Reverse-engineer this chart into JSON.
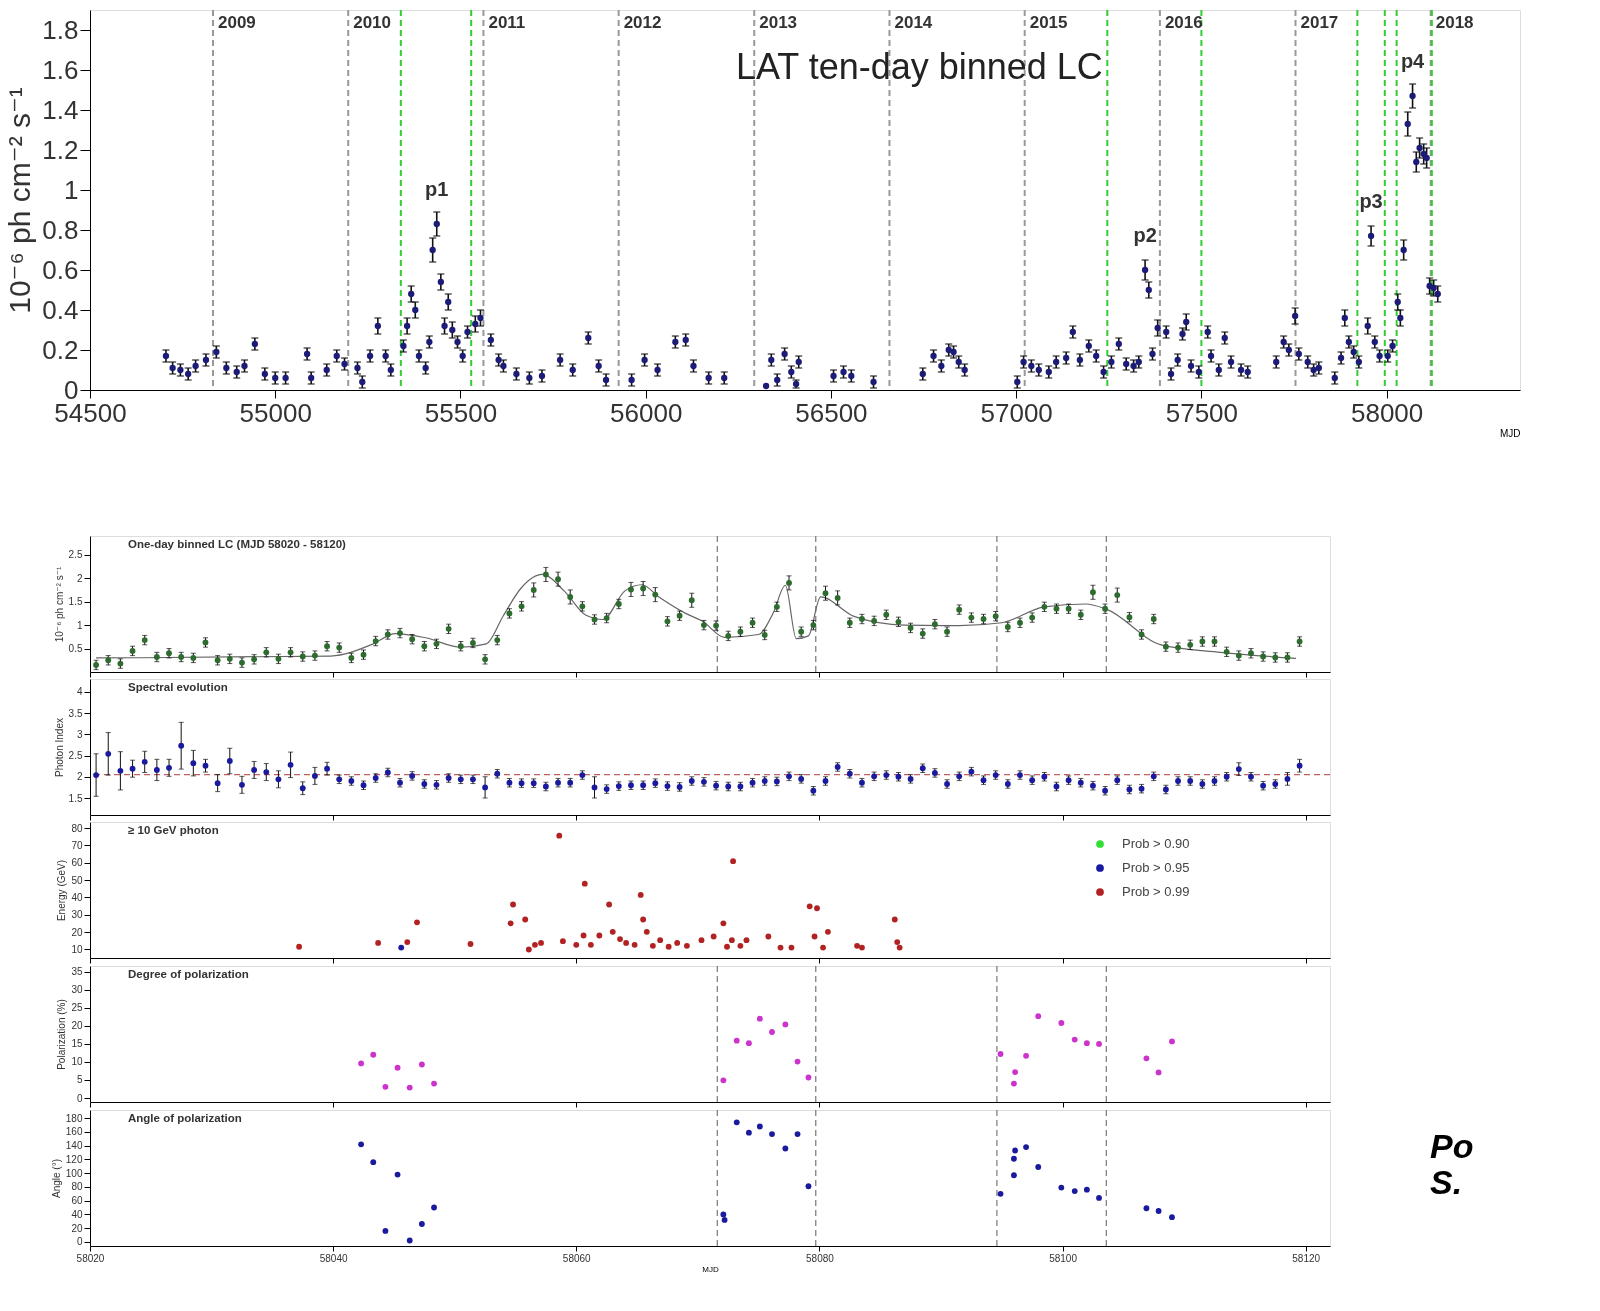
{
  "chart_data": [
    {
      "type": "scatter",
      "title": "LAT ten-day binned LC",
      "xlabel": "MJD",
      "ylabel": "10⁻⁶ ph cm⁻² s⁻¹",
      "xlim": [
        54500,
        58360
      ],
      "xticks": [
        54500,
        55000,
        55500,
        56000,
        56500,
        57000,
        57500,
        58000
      ],
      "ylim": [
        0,
        1.9
      ],
      "yticks": [
        0,
        0.2,
        0.4,
        0.6,
        0.8,
        1,
        1.2,
        1.4,
        1.6,
        1.8
      ],
      "marker": "circle",
      "series": [
        {
          "color": "#1c1c78",
          "x": [
            54705,
            54723,
            54744,
            54765,
            54785,
            54813,
            54841,
            54868,
            54896,
            54917,
            54945,
            54972,
            55000,
            55028,
            55086,
            55097,
            55139,
            55166,
            55187,
            55222,
            55235,
            55256,
            55277,
            55298,
            55312,
            55346,
            55356,
            55367,
            55378,
            55388,
            55406,
            55416,
            55425,
            55436,
            55447,
            55457,
            55467,
            55478,
            55492,
            55506,
            55519,
            55540,
            55554,
            55582,
            55603,
            55616,
            55651,
            55686,
            55720,
            55769,
            55803,
            55845,
            55873,
            55893,
            55962,
            55997,
            56032,
            56080,
            56108,
            56129,
            56170,
            56212,
            56325,
            56339,
            56355,
            56375,
            56393,
            56406,
            56413,
            56507,
            56534,
            56555,
            56615,
            56748,
            56777,
            56798,
            56818,
            56831,
            56845,
            56861,
            57003,
            57020,
            57041,
            57061,
            57088,
            57108,
            57135,
            57153,
            57172,
            57196,
            57216,
            57236,
            57257,
            57277,
            57297,
            57317,
            57331,
            57348,
            57358,
            57368,
            57382,
            57405,
            57418,
            57436,
            57449,
            57459,
            57472,
            57493,
            57517,
            57526,
            57547,
            57563,
            57580,
            57607,
            57625,
            57702,
            57722,
            57736,
            57753,
            57763,
            57787,
            57803,
            57817,
            57860,
            57877,
            57887,
            57898,
            57911,
            57925,
            57949,
            57958,
            57968,
            57981,
            58003,
            58016,
            58030,
            58037,
            58046,
            58057,
            58070,
            58080,
            58089,
            58100,
            58108,
            58116,
            58127,
            58138
          ],
          "values": [
            0.17,
            0.11,
            0.1,
            0.08,
            0.12,
            0.15,
            0.19,
            0.11,
            0.09,
            0.12,
            0.23,
            0.08,
            0.06,
            0.06,
            0.18,
            0.06,
            0.1,
            0.17,
            0.13,
            0.11,
            0.04,
            0.17,
            0.32,
            0.17,
            0.1,
            0.22,
            0.32,
            0.48,
            0.4,
            0.17,
            0.11,
            0.24,
            0.7,
            0.83,
            0.54,
            0.32,
            0.44,
            0.3,
            0.24,
            0.17,
            0.29,
            0.33,
            0.36,
            0.25,
            0.15,
            0.12,
            0.08,
            0.06,
            0.07,
            0.15,
            0.1,
            0.26,
            0.12,
            0.05,
            0.05,
            0.15,
            0.1,
            0.24,
            0.25,
            0.12,
            0.06,
            0.06,
            0.02,
            0.15,
            0.05,
            0.18,
            0.09,
            0.03,
            0.14,
            0.07,
            0.09,
            0.07,
            0.04,
            0.08,
            0.17,
            0.12,
            0.2,
            0.19,
            0.14,
            0.1,
            0.04,
            0.14,
            0.12,
            0.1,
            0.09,
            0.14,
            0.16,
            0.29,
            0.15,
            0.22,
            0.17,
            0.09,
            0.14,
            0.23,
            0.13,
            0.12,
            0.14,
            0.6,
            0.5,
            0.18,
            0.31,
            0.29,
            0.08,
            0.15,
            0.28,
            0.34,
            0.12,
            0.09,
            0.29,
            0.17,
            0.1,
            0.26,
            0.14,
            0.1,
            0.09,
            0.14,
            0.24,
            0.2,
            0.37,
            0.18,
            0.14,
            0.1,
            0.11,
            0.06,
            0.16,
            0.36,
            0.24,
            0.19,
            0.14,
            0.32,
            0.77,
            0.24,
            0.17,
            0.17,
            0.22,
            0.44,
            0.36,
            0.7,
            1.33,
            1.47,
            1.14,
            1.21,
            1.18,
            1.16,
            0.52,
            0.51,
            0.48
          ],
          "errors": [
            0.03,
            0.03,
            0.03,
            0.03,
            0.03,
            0.03,
            0.03,
            0.03,
            0.03,
            0.03,
            0.03,
            0.03,
            0.03,
            0.03,
            0.03,
            0.03,
            0.03,
            0.03,
            0.03,
            0.03,
            0.03,
            0.03,
            0.04,
            0.03,
            0.03,
            0.03,
            0.04,
            0.04,
            0.04,
            0.03,
            0.03,
            0.03,
            0.06,
            0.06,
            0.04,
            0.04,
            0.04,
            0.04,
            0.03,
            0.03,
            0.03,
            0.04,
            0.04,
            0.03,
            0.03,
            0.03,
            0.03,
            0.03,
            0.03,
            0.03,
            0.03,
            0.03,
            0.03,
            0.03,
            0.03,
            0.03,
            0.03,
            0.03,
            0.03,
            0.03,
            0.03,
            0.03,
            null,
            0.03,
            0.03,
            0.03,
            0.03,
            0.02,
            0.03,
            0.03,
            0.03,
            0.03,
            0.03,
            0.03,
            0.03,
            0.03,
            0.03,
            0.03,
            0.03,
            0.03,
            0.03,
            0.03,
            0.03,
            0.03,
            0.03,
            0.03,
            0.03,
            0.03,
            0.03,
            0.03,
            0.03,
            0.03,
            0.03,
            0.03,
            0.03,
            0.03,
            0.03,
            0.05,
            0.04,
            0.03,
            0.04,
            0.03,
            0.03,
            0.03,
            0.03,
            0.04,
            0.03,
            0.03,
            0.03,
            0.03,
            0.03,
            0.03,
            0.03,
            0.03,
            0.03,
            0.03,
            0.03,
            0.03,
            0.04,
            0.03,
            0.03,
            0.03,
            0.03,
            0.03,
            0.03,
            0.04,
            0.03,
            0.03,
            0.03,
            0.04,
            0.05,
            0.03,
            0.03,
            0.03,
            0.03,
            0.04,
            0.04,
            0.05,
            0.06,
            0.06,
            0.05,
            0.05,
            0.05,
            0.05,
            0.04,
            0.04,
            0.04
          ]
        }
      ],
      "ref_lines": [
        {
          "axis": "x",
          "value": 54832,
          "color": "#999999",
          "line_style": "dashed"
        },
        {
          "axis": "x",
          "value": 55197,
          "color": "#999999",
          "line_style": "dashed"
        },
        {
          "axis": "x",
          "value": 55562,
          "color": "#999999",
          "line_style": "dashed"
        },
        {
          "axis": "x",
          "value": 55927,
          "color": "#999999",
          "line_style": "dashed"
        },
        {
          "axis": "x",
          "value": 56293,
          "color": "#999999",
          "line_style": "dashed"
        },
        {
          "axis": "x",
          "value": 56658,
          "color": "#999999",
          "line_style": "dashed"
        },
        {
          "axis": "x",
          "value": 57023,
          "color": "#999999",
          "line_style": "dashed"
        },
        {
          "axis": "x",
          "value": 57388,
          "color": "#999999",
          "line_style": "dashed"
        },
        {
          "axis": "x",
          "value": 57754,
          "color": "#999999",
          "line_style": "dashed"
        },
        {
          "axis": "x",
          "value": 58119,
          "color": "#999999",
          "line_style": "dashed"
        },
        {
          "axis": "x",
          "value": 55339,
          "color": "#33cc33",
          "line_style": "dashed"
        },
        {
          "axis": "x",
          "value": 55529,
          "color": "#33cc33",
          "line_style": "dashed"
        },
        {
          "axis": "x",
          "value": 57246,
          "color": "#33cc33",
          "line_style": "dashed"
        },
        {
          "axis": "x",
          "value": 57500,
          "color": "#33cc33",
          "line_style": "dashed"
        },
        {
          "axis": "x",
          "value": 57921,
          "color": "#33cc33",
          "line_style": "dashed"
        },
        {
          "axis": "x",
          "value": 57995,
          "color": "#33cc33",
          "line_style": "dashed"
        },
        {
          "axis": "x",
          "value": 58027,
          "color": "#33cc33",
          "line_style": "dashed"
        },
        {
          "axis": "x",
          "value": 58122,
          "color": "#33cc33",
          "line_style": "dashed"
        }
      ],
      "annotations": [
        {
          "text": "2009",
          "x": 54832,
          "y": 1.9
        },
        {
          "text": "2010",
          "x": 55197,
          "y": 1.9
        },
        {
          "text": "2011",
          "x": 55562,
          "y": 1.9
        },
        {
          "text": "2012",
          "x": 55927,
          "y": 1.9
        },
        {
          "text": "2013",
          "x": 56293,
          "y": 1.9
        },
        {
          "text": "2014",
          "x": 56658,
          "y": 1.9
        },
        {
          "text": "2015",
          "x": 57023,
          "y": 1.9
        },
        {
          "text": "2016",
          "x": 57388,
          "y": 1.9
        },
        {
          "text": "2017",
          "x": 57754,
          "y": 1.9
        },
        {
          "text": "2018",
          "x": 58119,
          "y": 1.9
        },
        {
          "text": "p1",
          "x": 55436,
          "y": 0.83
        },
        {
          "text": "p2",
          "x": 57348,
          "y": 0.6
        },
        {
          "text": "p3",
          "x": 57958,
          "y": 0.77
        },
        {
          "text": "p4",
          "x": 58070,
          "y": 1.47
        }
      ]
    },
    {
      "type": "scatter",
      "title": "One-day binned LC (MJD 58020 - 58120)",
      "ylabel": "10⁻⁶ ph cm⁻² s⁻¹",
      "xlim": [
        58020,
        58122
      ],
      "xticks": [
        58020,
        58040,
        58060,
        58080,
        58100,
        58120
      ],
      "ylim": [
        0,
        2.9
      ],
      "yticks": [
        0.5,
        1,
        1.5,
        2,
        2.5
      ],
      "tick_labels": "y",
      "marker": "circle",
      "x": [
        58020.5,
        58021.5,
        58022.5,
        58023.5,
        58024.5,
        58025.5,
        58026.5,
        58027.5,
        58028.5,
        58029.5,
        58030.5,
        58031.5,
        58032.5,
        58033.5,
        58034.5,
        58035.5,
        58036.5,
        58037.5,
        58038.5,
        58039.5,
        58040.5,
        58041.5,
        58042.5,
        58043.5,
        58044.5,
        58045.5,
        58046.5,
        58047.5,
        58048.5,
        58049.5,
        58050.5,
        58051.5,
        58052.5,
        58053.5,
        58054.5,
        58055.5,
        58056.5,
        58057.5,
        58058.5,
        58059.5,
        58060.5,
        58061.5,
        58062.5,
        58063.5,
        58064.5,
        58065.5,
        58066.5,
        58067.5,
        58068.5,
        58069.5,
        58070.5,
        58071.5,
        58072.5,
        58073.5,
        58074.5,
        58075.5,
        58076.5,
        58077.5,
        58078.5,
        58079.5,
        58080.5,
        58081.5,
        58082.5,
        58083.5,
        58084.5,
        58085.5,
        58086.5,
        58087.5,
        58088.5,
        58089.5,
        58090.5,
        58091.5,
        58092.5,
        58093.5,
        58094.5,
        58095.5,
        58096.5,
        58097.5,
        58098.5,
        58099.5,
        58100.5,
        58101.5,
        58102.5,
        58103.5,
        58104.5,
        58105.5,
        58106.5,
        58107.5,
        58108.5,
        58109.5,
        58110.5,
        58111.5,
        58112.5,
        58113.5,
        58114.5,
        58115.5,
        58116.5,
        58117.5,
        58118.5,
        58119.5
      ],
      "series": [
        {
          "type": "line",
          "marker": "none",
          "color": "#666666",
          "x": [
            58020.5,
            58039.8,
            58043.3,
            58045.1,
            58047.6,
            58050.5,
            58052.6,
            58054,
            58055.4,
            58057.2,
            58059,
            58060.8,
            58062.2,
            58064,
            58065.4,
            58066.8,
            58069,
            58070.4,
            58072.2,
            58075,
            58076.2,
            58077.2,
            58078.1,
            58079.1,
            58080.1,
            58082.9,
            58087,
            58091.5,
            58095,
            58098.5,
            58101.9,
            58103.6,
            58108.1,
            58113,
            58119.2
          ],
          "values": [
            0.3,
            0.34,
            0.6,
            0.82,
            0.73,
            0.53,
            0.6,
            1.2,
            1.77,
            2.08,
            1.73,
            1.21,
            1.12,
            1.73,
            1.86,
            1.6,
            1.25,
            1.08,
            0.74,
            0.8,
            1.26,
            1.85,
            0.71,
            0.77,
            1.6,
            1.18,
            1.0,
            0.99,
            1.05,
            1.39,
            1.45,
            1.34,
            0.58,
            0.42,
            0.29
          ]
        },
        {
          "color": "#2e6b2e",
          "values": [
            0.15,
            0.25,
            0.18,
            0.45,
            0.68,
            0.32,
            0.4,
            0.32,
            0.3,
            0.63,
            0.25,
            0.28,
            0.2,
            0.27,
            0.42,
            0.28,
            0.42,
            0.33,
            0.35,
            0.55,
            0.52,
            0.3,
            0.37,
            0.66,
            0.8,
            0.83,
            0.7,
            0.55,
            0.6,
            0.92,
            0.55,
            0.62,
            0.27,
            0.68,
            1.25,
            1.4,
            1.75,
            2.08,
            1.98,
            1.6,
            1.4,
            1.12,
            1.15,
            1.45,
            1.76,
            1.78,
            1.65,
            1.08,
            1.2,
            1.53,
            1.0,
            0.99,
            0.77,
            0.86,
            1.05,
            0.79,
            1.39,
            1.9,
            0.86,
            1.0,
            1.68,
            1.58,
            1.05,
            1.13,
            1.09,
            1.22,
            1.07,
            0.94,
            0.82,
            1.02,
            0.86,
            1.33,
            1.16,
            1.13,
            1.19,
            0.96,
            1.05,
            1.16,
            1.39,
            1.35,
            1.35,
            1.22,
            1.7,
            1.35,
            1.64,
            1.17,
            0.8,
            1.13,
            0.54,
            0.52,
            0.58,
            0.65,
            0.65,
            0.43,
            0.35,
            0.4,
            0.33,
            0.31,
            0.31,
            0.65
          ],
          "errors": [
            0.1,
            0.1,
            0.1,
            0.1,
            0.1,
            0.1,
            0.1,
            0.1,
            0.1,
            0.1,
            0.1,
            0.1,
            0.1,
            0.1,
            0.1,
            0.1,
            0.1,
            0.1,
            0.1,
            0.1,
            0.1,
            0.1,
            0.1,
            0.1,
            0.1,
            0.1,
            0.1,
            0.1,
            0.1,
            0.1,
            0.1,
            0.1,
            0.1,
            0.1,
            0.1,
            0.1,
            0.15,
            0.15,
            0.15,
            0.15,
            0.1,
            0.1,
            0.1,
            0.1,
            0.15,
            0.15,
            0.15,
            0.1,
            0.1,
            0.15,
            0.1,
            0.1,
            0.1,
            0.1,
            0.1,
            0.1,
            0.1,
            0.15,
            0.1,
            0.1,
            0.15,
            0.15,
            0.1,
            0.1,
            0.1,
            0.1,
            0.1,
            0.1,
            0.1,
            0.1,
            0.1,
            0.1,
            0.1,
            0.1,
            0.1,
            0.1,
            0.1,
            0.1,
            0.1,
            0.1,
            0.1,
            0.1,
            0.15,
            0.1,
            0.15,
            0.1,
            0.1,
            0.1,
            0.1,
            0.1,
            0.1,
            0.1,
            0.1,
            0.1,
            0.1,
            0.1,
            0.1,
            0.1,
            0.1,
            0.1
          ]
        }
      ],
      "ref_lines": [
        {
          "axis": "x",
          "value": 58071.6,
          "color": "#777777",
          "line_style": "dashed"
        },
        {
          "axis": "x",
          "value": 58079.7,
          "color": "#777777",
          "line_style": "dashed"
        },
        {
          "axis": "x",
          "value": 58094.6,
          "color": "#777777",
          "line_style": "dashed"
        },
        {
          "axis": "x",
          "value": 58103.6,
          "color": "#777777",
          "line_style": "dashed"
        }
      ]
    },
    {
      "type": "scatter",
      "title": "Spectral evolution",
      "ylabel": "Photon Index",
      "xlim": [
        58020,
        58122
      ],
      "xticks": [
        58020,
        58040,
        58060,
        58080,
        58100,
        58120
      ],
      "ylim": [
        1.1,
        4.3
      ],
      "yticks": [
        1.5,
        2,
        2.5,
        3,
        3.5,
        4
      ],
      "tick_labels": "y",
      "marker": "circle",
      "x": [
        58020.5,
        58021.5,
        58022.5,
        58023.5,
        58024.5,
        58025.5,
        58026.5,
        58027.5,
        58028.5,
        58029.5,
        58030.5,
        58031.5,
        58032.5,
        58033.5,
        58034.5,
        58035.5,
        58036.5,
        58037.5,
        58038.5,
        58039.5,
        58040.5,
        58041.5,
        58042.5,
        58043.5,
        58044.5,
        58045.5,
        58046.5,
        58047.5,
        58048.5,
        58049.5,
        58050.5,
        58051.5,
        58052.5,
        58053.5,
        58054.5,
        58055.5,
        58056.5,
        58057.5,
        58058.5,
        58059.5,
        58060.5,
        58061.5,
        58062.5,
        58063.5,
        58064.5,
        58065.5,
        58066.5,
        58067.5,
        58068.5,
        58069.5,
        58070.5,
        58071.5,
        58072.5,
        58073.5,
        58074.5,
        58075.5,
        58076.5,
        58077.5,
        58078.5,
        58079.5,
        58080.5,
        58081.5,
        58082.5,
        58083.5,
        58084.5,
        58085.5,
        58086.5,
        58087.5,
        58088.5,
        58089.5,
        58090.5,
        58091.5,
        58092.5,
        58093.5,
        58094.5,
        58095.5,
        58096.5,
        58097.5,
        58098.5,
        58099.5,
        58100.5,
        58101.5,
        58102.5,
        58103.5,
        58104.5,
        58105.5,
        58106.5,
        58107.5,
        58108.5,
        58109.5,
        58110.5,
        58111.5,
        58112.5,
        58113.5,
        58114.5,
        58115.5,
        58116.5,
        58117.5,
        58118.5,
        58119.5
      ],
      "series": [
        {
          "color": "#1a1a9e",
          "values": [
            2.04,
            2.54,
            2.14,
            2.19,
            2.35,
            2.16,
            2.21,
            2.73,
            2.32,
            2.26,
            1.85,
            2.37,
            1.81,
            2.16,
            2.11,
            1.94,
            2.28,
            1.73,
            2.02,
            2.19,
            1.94,
            1.9,
            1.8,
            1.97,
            2.1,
            1.86,
            2.02,
            1.83,
            1.81,
            1.97,
            1.94,
            1.94,
            1.75,
            2.07,
            1.86,
            1.85,
            1.85,
            1.77,
            1.86,
            1.86,
            2.04,
            1.75,
            1.71,
            1.78,
            1.8,
            1.8,
            1.85,
            1.78,
            1.76,
            1.9,
            1.88,
            1.79,
            1.77,
            1.77,
            1.86,
            1.9,
            1.89,
            2.01,
            1.95,
            1.67,
            1.9,
            2.23,
            2.07,
            1.86,
            2.01,
            2.04,
            2.0,
            1.95,
            2.2,
            2.09,
            1.83,
            2.01,
            2.12,
            1.92,
            2.04,
            1.83,
            2.04,
            1.92,
            2.0,
            1.77,
            1.92,
            1.86,
            1.79,
            1.67,
            1.92,
            1.7,
            1.72,
            2.01,
            1.7,
            1.9,
            1.9,
            1.83,
            1.9,
            2.0,
            2.18,
            2.0,
            1.79,
            1.83,
            1.95,
            2.26
          ],
          "errors": [
            0.5,
            0.5,
            0.45,
            0.2,
            0.25,
            0.25,
            0.2,
            0.55,
            0.3,
            0.15,
            0.2,
            0.3,
            0.2,
            0.2,
            0.2,
            0.2,
            0.3,
            0.15,
            0.2,
            0.15,
            0.1,
            0.1,
            0.1,
            0.1,
            0.1,
            0.1,
            0.1,
            0.1,
            0.1,
            0.1,
            0.1,
            0.1,
            0.25,
            0.1,
            0.1,
            0.1,
            0.1,
            0.1,
            0.1,
            0.1,
            0.1,
            0.25,
            0.1,
            0.1,
            0.1,
            0.1,
            0.1,
            0.1,
            0.1,
            0.1,
            0.1,
            0.1,
            0.1,
            0.1,
            0.1,
            0.1,
            0.1,
            0.1,
            0.1,
            0.1,
            0.1,
            0.1,
            0.1,
            0.1,
            0.1,
            0.1,
            0.1,
            0.1,
            0.1,
            0.1,
            0.1,
            0.1,
            0.1,
            0.1,
            0.1,
            0.1,
            0.1,
            0.1,
            0.1,
            0.1,
            0.1,
            0.1,
            0.1,
            0.1,
            0.1,
            0.1,
            0.1,
            0.1,
            0.1,
            0.1,
            0.1,
            0.1,
            0.1,
            0.1,
            0.15,
            0.1,
            0.1,
            0.1,
            0.15,
            0.15
          ]
        }
      ],
      "ref_lines": [
        {
          "axis": "y",
          "value": 2.05,
          "color": "#c06060",
          "line_style": "dashed"
        }
      ]
    },
    {
      "type": "scatter",
      "title": "≥ 10 GeV photon",
      "ylabel": "Energy (GeV)",
      "xlim": [
        58020,
        58122
      ],
      "xticks": [
        58020,
        58040,
        58060,
        58080,
        58100,
        58120
      ],
      "ylim": [
        5,
        83.5
      ],
      "yticks": [
        10,
        20,
        30,
        40,
        50,
        60,
        70,
        80
      ],
      "tick_labels": "y",
      "marker": "circle",
      "legend": "top right",
      "series": [
        {
          "name": "Prob > 0.90",
          "color": "#33dd33"
        },
        {
          "name": "Prob > 0.95",
          "color": "#1a1aa0",
          "x": [
            58045.6
          ],
          "values": [
            11
          ]
        },
        {
          "name": "Prob > 0.99",
          "color": "#b22222",
          "x": [
            58037.2,
            58043.7,
            58046.1,
            58046.9,
            58051.3,
            58054.6,
            58054.8,
            58055.8,
            58056.1,
            58056.6,
            58057.1,
            58058.6,
            58058.9,
            58060,
            58060.6,
            58060.7,
            58061.2,
            58061.9,
            58062.7,
            58063,
            58063.6,
            58064.1,
            58064.8,
            58065.3,
            58065.5,
            58065.8,
            58066.3,
            58066.9,
            58067.6,
            58068.3,
            58069.1,
            58070.3,
            58071.3,
            58072.1,
            58072.4,
            58072.9,
            58072.8,
            58073.5,
            58074,
            58075.8,
            58076.8,
            58077.7,
            58079.2,
            58079.8,
            58079.6,
            58080.3,
            58080.7,
            58083.1,
            58083.5,
            58086.2,
            58086.4,
            58086.6
          ],
          "values": [
            11.5,
            13.7,
            14.2,
            25.6,
            13.1,
            25,
            35.9,
            27.2,
            9.9,
            12.6,
            13.7,
            75.6,
            14.7,
            12.6,
            18,
            47.9,
            12.6,
            18,
            35.9,
            20.1,
            15.9,
            13.7,
            12.6,
            41.4,
            27.2,
            20.1,
            12,
            15.3,
            11.5,
            13.7,
            12,
            15.3,
            17.4,
            25,
            11.5,
            60.9,
            15.3,
            12,
            15.3,
            17.4,
            11,
            11,
            34.8,
            33.7,
            17.4,
            11,
            20.1,
            12,
            11,
            27.2,
            14.2,
            11
          ]
        }
      ]
    },
    {
      "type": "scatter",
      "title": "Degree of polarization",
      "ylabel": "Polarization (%)",
      "xlim": [
        58020,
        58122
      ],
      "xticks": [
        58020,
        58040,
        58060,
        58080,
        58100,
        58120
      ],
      "ylim": [
        -1.1,
        36.6
      ],
      "yticks": [
        0,
        5,
        10,
        15,
        20,
        25,
        30,
        35
      ],
      "tick_labels": "y",
      "marker": "circle",
      "series": [
        {
          "color": "#cc33cc",
          "x": [
            58042.3,
            58043.3,
            58044.3,
            58045.3,
            58046.3,
            58047.3,
            58048.3,
            58072.1,
            58073.2,
            58074.2,
            58075.1,
            58076.1,
            58077.2,
            58078.2,
            58079.1,
            58094.9,
            58096,
            58096.1,
            58097,
            58098,
            58099.9,
            58101,
            58102,
            58103,
            58106.9,
            58107.9,
            58109
          ],
          "values": [
            9.6,
            12.0,
            3.1,
            8.4,
            2.9,
            9.3,
            4.0,
            4.9,
            15.9,
            15.2,
            22.0,
            18.3,
            20.4,
            10.1,
            5.7,
            12.2,
            4.0,
            7.2,
            11.7,
            22.7,
            20.8,
            16.2,
            15.2,
            15.0,
            11.0,
            7.1,
            15.7
          ]
        }
      ],
      "ref_lines": [
        {
          "axis": "x",
          "value": 58071.6,
          "color": "#777777",
          "line_style": "dashed"
        },
        {
          "axis": "x",
          "value": 58079.7,
          "color": "#777777",
          "line_style": "dashed"
        },
        {
          "axis": "x",
          "value": 58094.6,
          "color": "#777777",
          "line_style": "dashed"
        },
        {
          "axis": "x",
          "value": 58103.6,
          "color": "#777777",
          "line_style": "dashed"
        }
      ]
    },
    {
      "type": "scatter",
      "title": "Angle of polarization",
      "xlabel": "MJD",
      "ylabel": "Angle (°)",
      "xlim": [
        58020,
        58122
      ],
      "xticks": [
        58020,
        58040,
        58060,
        58080,
        58100,
        58120
      ],
      "ylim": [
        -6,
        192
      ],
      "yticks": [
        0,
        20,
        40,
        60,
        80,
        100,
        120,
        140,
        160,
        180
      ],
      "marker": "circle",
      "series": [
        {
          "color": "#1a1a9e",
          "x": [
            58042.3,
            58043.3,
            58044.3,
            58045.3,
            58046.3,
            58047.3,
            58048.3,
            58072.1,
            58072.2,
            58073.2,
            58074.2,
            58075.1,
            58076.1,
            58077.2,
            58078.2,
            58079.1,
            58094.9,
            58096,
            58096,
            58096.1,
            58097,
            58098,
            58099.9,
            58101,
            58102,
            58103,
            58106.9,
            58107.9,
            58109
          ],
          "values": [
            142,
            116,
            16,
            98,
            2,
            26,
            50,
            40,
            32,
            174,
            159,
            168,
            157,
            136,
            157,
            81,
            70,
            97,
            121,
            133,
            138,
            109,
            79,
            74,
            76,
            64,
            49,
            45,
            36
          ]
        }
      ],
      "ref_lines": [
        {
          "axis": "x",
          "value": 58071.6,
          "color": "#777777",
          "line_style": "dashed"
        },
        {
          "axis": "x",
          "value": 58079.7,
          "color": "#777777",
          "line_style": "dashed"
        },
        {
          "axis": "x",
          "value": 58094.6,
          "color": "#777777",
          "line_style": "dashed"
        },
        {
          "axis": "x",
          "value": 58103.6,
          "color": "#777777",
          "line_style": "dashed"
        }
      ],
      "annotations": [
        "Po",
        "S."
      ]
    }
  ]
}
